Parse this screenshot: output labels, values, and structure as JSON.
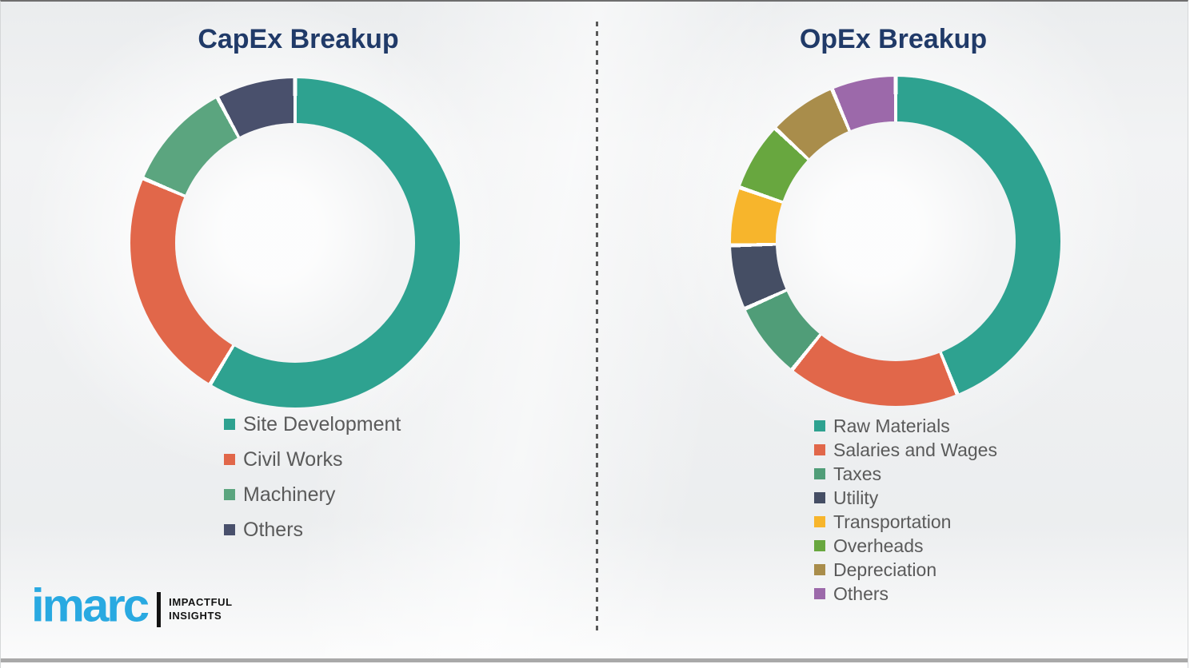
{
  "page": {
    "colors": {
      "background": "#f2f3f4",
      "title_text": "#203a68",
      "legend_text": "#5a5a5a",
      "divider": "#595959",
      "bottom_bar": "#a9a9a9",
      "logo_blue": "#29a9e1",
      "logo_black": "#121212",
      "slice_gap": "#ffffff"
    }
  },
  "capex": {
    "title": "CapEx Breakup"
  },
  "opex": {
    "title": "OpEx Breakup"
  },
  "logo": {
    "brand": "imarc",
    "tagline": [
      "IMPACTFUL",
      "INSIGHTS"
    ]
  },
  "chart_data": [
    {
      "type": "pie",
      "subtype": "donut",
      "title": "CapEx Breakup",
      "categories": [
        "Site Development",
        "Civil Works",
        "Machinery",
        "Others"
      ],
      "values": [
        58.6,
        22.8,
        10.8,
        7.8
      ],
      "colors": [
        "#2ea290",
        "#e1674a",
        "#5ba57f",
        "#49506c"
      ],
      "start_angle_deg": 0,
      "direction": "clockwise",
      "legend_position": "below-left",
      "data_labels": false
    },
    {
      "type": "pie",
      "subtype": "donut",
      "title": "OpEx Breakup",
      "categories": [
        "Raw Materials",
        "Salaries and Wages",
        "Taxes",
        "Utility",
        "Transportation",
        "Overheads",
        "Depreciation",
        "Others"
      ],
      "values": [
        43.9,
        16.9,
        7.5,
        6.3,
        5.7,
        6.7,
        6.7,
        6.3
      ],
      "colors": [
        "#2ea290",
        "#e1674a",
        "#509d78",
        "#454e64",
        "#f7b52c",
        "#68a73f",
        "#a98d4b",
        "#9c69aa"
      ],
      "start_angle_deg": 0,
      "direction": "clockwise",
      "legend_position": "below-left",
      "data_labels": false
    }
  ]
}
